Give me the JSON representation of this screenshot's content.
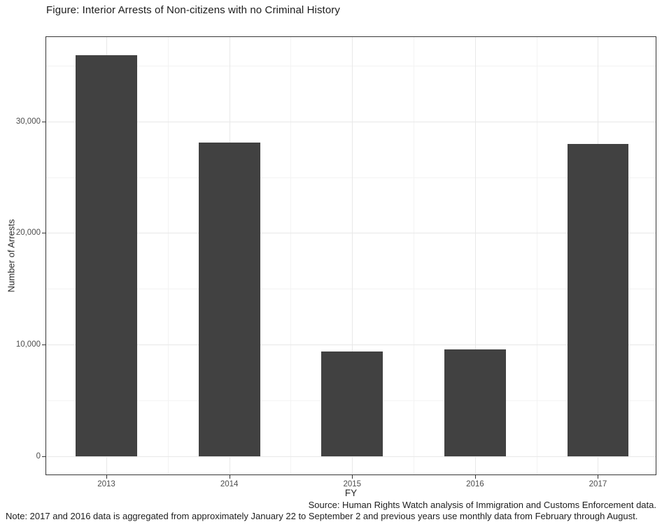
{
  "figure": {
    "caption": "Source: Human Rights Watch analysis of Immigration and Customs Enforcement data.",
    "note": "Note: 2017 and 2016 data is aggregated from approximately January 22 to September 2 and previous years use monthly data from February through August."
  },
  "chart_data": {
    "type": "bar",
    "title": "Figure: Interior Arrests of Non-citizens with no Criminal History",
    "xlabel": "FY",
    "ylabel": "Number of Arrests",
    "categories": [
      "2013",
      "2014",
      "2015",
      "2016",
      "2017"
    ],
    "x_positions": [
      2013,
      2014,
      2015,
      2016,
      2017
    ],
    "values": [
      35900,
      28100,
      9400,
      9600,
      28000
    ],
    "bar_width": 0.5,
    "xlim": [
      2012.51,
      2017.47
    ],
    "ylim": [
      -1620,
      37550
    ],
    "y_ticks": [
      {
        "value": 0,
        "label": "0"
      },
      {
        "value": 10000,
        "label": "10,000"
      },
      {
        "value": 20000,
        "label": "20,000"
      },
      {
        "value": 30000,
        "label": "30,000"
      }
    ],
    "y_minor": [
      5000,
      15000,
      25000,
      35000
    ],
    "x_minor": [
      2013.5,
      2014.5,
      2015.5,
      2016.5
    ],
    "grid": "major-and-minor",
    "legend_position": "none",
    "colors": {
      "bar": "#414141",
      "panel_border": "#383838",
      "grid_major": "#e8e8e8",
      "grid_minor": "#f3f3f3",
      "tick": "#333333",
      "tick_label": "#4d4d4d",
      "text": "#1c1c1c"
    }
  }
}
